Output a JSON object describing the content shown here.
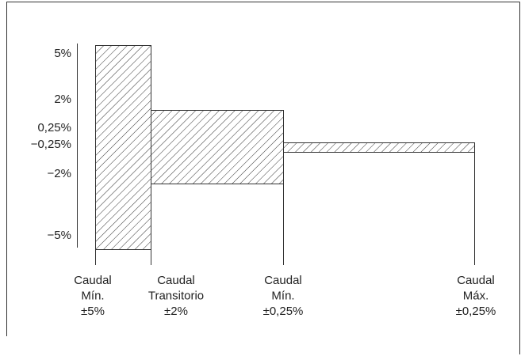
{
  "y_labels": [
    "5%",
    "2%",
    "0,25%",
    "−0,25%",
    "−2%",
    "−5%"
  ],
  "x_labels": [
    [
      "Caudal",
      "Mín.",
      "±5%"
    ],
    [
      "Caudal",
      "Transitorio",
      "±2%"
    ],
    [
      "Caudal",
      "Mín.",
      "±0,25%"
    ],
    [
      "Caudal",
      "Máx.",
      "±0,25%"
    ]
  ]
}
